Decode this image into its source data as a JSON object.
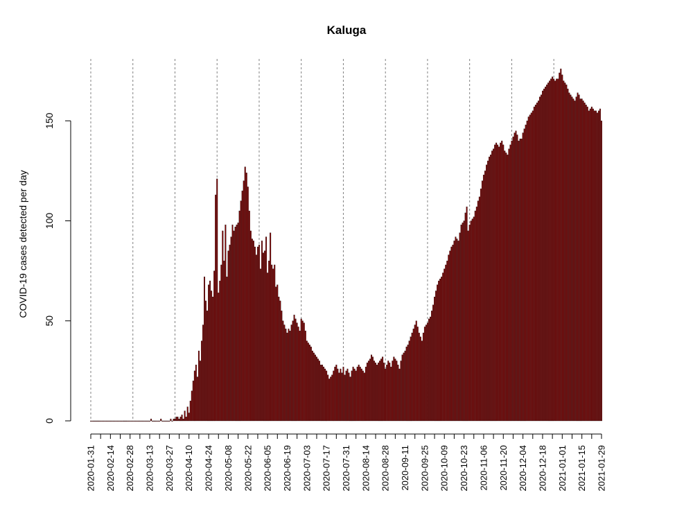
{
  "chart_data": {
    "type": "bar",
    "title": "Kaluga",
    "xlabel": "",
    "ylabel": "COVID-19 cases detected per day",
    "ylim": [
      0,
      176
    ],
    "yticks": [
      0,
      50,
      100,
      150
    ],
    "grid": "vertical dashed lines at monthly intervals",
    "bar_color": "#7f0000",
    "x_start": "2020-01-31",
    "x_end": "2021-01-29",
    "x_tick_labels": [
      "2020-01-31",
      "2020-02-14",
      "2020-02-28",
      "2020-03-13",
      "2020-03-27",
      "2020-04-10",
      "2020-04-24",
      "2020-05-08",
      "2020-05-22",
      "2020-06-05",
      "2020-06-19",
      "2020-07-03",
      "2020-07-17",
      "2020-07-31",
      "2020-08-14",
      "2020-08-28",
      "2020-09-11",
      "2020-09-25",
      "2020-10-09",
      "2020-10-23",
      "2020-11-06",
      "2020-11-20",
      "2020-12-04",
      "2020-12-18",
      "2021-01-01",
      "2021-01-15",
      "2021-01-29"
    ],
    "gridline_dates": [
      "2020-01-31",
      "2020-03-01",
      "2020-03-31",
      "2020-04-30",
      "2020-05-30",
      "2020-06-29",
      "2020-07-29",
      "2020-08-28",
      "2020-09-27",
      "2020-10-27",
      "2020-11-26",
      "2020-12-26"
    ],
    "anchors": [
      [
        "2020-01-31",
        0
      ],
      [
        "2020-03-13",
        0
      ],
      [
        "2020-03-14",
        1
      ],
      [
        "2020-03-15",
        0
      ],
      [
        "2020-03-20",
        0
      ],
      [
        "2020-03-21",
        1
      ],
      [
        "2020-03-22",
        0
      ],
      [
        "2020-03-27",
        0
      ],
      [
        "2020-03-28",
        1
      ],
      [
        "2020-03-29",
        0
      ],
      [
        "2020-04-01",
        2
      ],
      [
        "2020-04-03",
        1
      ],
      [
        "2020-04-05",
        3
      ],
      [
        "2020-04-06",
        1
      ],
      [
        "2020-04-07",
        5
      ],
      [
        "2020-04-08",
        2
      ],
      [
        "2020-04-09",
        7
      ],
      [
        "2020-04-10",
        4
      ],
      [
        "2020-04-11",
        10
      ],
      [
        "2020-04-12",
        15
      ],
      [
        "2020-04-13",
        20
      ],
      [
        "2020-04-14",
        25
      ],
      [
        "2020-04-15",
        28
      ],
      [
        "2020-04-16",
        22
      ],
      [
        "2020-04-17",
        35
      ],
      [
        "2020-04-18",
        30
      ],
      [
        "2020-04-19",
        40
      ],
      [
        "2020-04-20",
        48
      ],
      [
        "2020-04-21",
        72
      ],
      [
        "2020-04-22",
        60
      ],
      [
        "2020-04-23",
        55
      ],
      [
        "2020-04-24",
        68
      ],
      [
        "2020-04-25",
        70
      ],
      [
        "2020-04-26",
        65
      ],
      [
        "2020-04-27",
        62
      ],
      [
        "2020-04-28",
        75
      ],
      [
        "2020-04-29",
        113
      ],
      [
        "2020-04-30",
        121
      ],
      [
        "2020-05-01",
        64
      ],
      [
        "2020-05-02",
        70
      ],
      [
        "2020-05-03",
        78
      ],
      [
        "2020-05-04",
        95
      ],
      [
        "2020-05-05",
        80
      ],
      [
        "2020-05-06",
        98
      ],
      [
        "2020-05-07",
        72
      ],
      [
        "2020-05-08",
        85
      ],
      [
        "2020-05-09",
        88
      ],
      [
        "2020-05-10",
        92
      ],
      [
        "2020-05-11",
        98
      ],
      [
        "2020-05-12",
        95
      ],
      [
        "2020-05-13",
        97
      ],
      [
        "2020-05-14",
        98
      ],
      [
        "2020-05-15",
        99
      ],
      [
        "2020-05-16",
        105
      ],
      [
        "2020-05-17",
        110
      ],
      [
        "2020-05-18",
        115
      ],
      [
        "2020-05-19",
        120
      ],
      [
        "2020-05-20",
        127
      ],
      [
        "2020-05-21",
        124
      ],
      [
        "2020-05-22",
        117
      ],
      [
        "2020-05-23",
        105
      ],
      [
        "2020-05-24",
        95
      ],
      [
        "2020-05-25",
        91
      ],
      [
        "2020-05-26",
        90
      ],
      [
        "2020-05-27",
        87
      ],
      [
        "2020-05-28",
        83
      ],
      [
        "2020-05-29",
        87
      ],
      [
        "2020-05-30",
        88
      ],
      [
        "2020-05-31",
        76
      ],
      [
        "2020-06-01",
        90
      ],
      [
        "2020-06-02",
        84
      ],
      [
        "2020-06-03",
        85
      ],
      [
        "2020-06-04",
        92
      ],
      [
        "2020-06-05",
        74
      ],
      [
        "2020-06-06",
        80
      ],
      [
        "2020-06-07",
        94
      ],
      [
        "2020-06-08",
        78
      ],
      [
        "2020-06-09",
        76
      ],
      [
        "2020-06-10",
        78
      ],
      [
        "2020-06-11",
        67
      ],
      [
        "2020-06-12",
        68
      ],
      [
        "2020-06-13",
        62
      ],
      [
        "2020-06-14",
        60
      ],
      [
        "2020-06-15",
        55
      ],
      [
        "2020-06-16",
        50
      ],
      [
        "2020-06-17",
        48
      ],
      [
        "2020-06-18",
        46
      ],
      [
        "2020-06-19",
        44
      ],
      [
        "2020-06-20",
        46
      ],
      [
        "2020-06-21",
        45
      ],
      [
        "2020-06-22",
        48
      ],
      [
        "2020-06-23",
        50
      ],
      [
        "2020-06-24",
        53
      ],
      [
        "2020-06-25",
        51
      ],
      [
        "2020-06-26",
        49
      ],
      [
        "2020-06-27",
        47
      ],
      [
        "2020-06-28",
        45
      ],
      [
        "2020-06-29",
        51
      ],
      [
        "2020-06-30",
        50
      ],
      [
        "2020-07-01",
        49
      ],
      [
        "2020-07-02",
        45
      ],
      [
        "2020-07-03",
        40
      ],
      [
        "2020-07-05",
        38
      ],
      [
        "2020-07-07",
        35
      ],
      [
        "2020-07-09",
        33
      ],
      [
        "2020-07-11",
        31
      ],
      [
        "2020-07-13",
        28
      ],
      [
        "2020-07-15",
        27
      ],
      [
        "2020-07-17",
        25
      ],
      [
        "2020-07-18",
        23
      ],
      [
        "2020-07-19",
        21
      ],
      [
        "2020-07-20",
        22
      ],
      [
        "2020-07-21",
        23
      ],
      [
        "2020-07-22",
        25
      ],
      [
        "2020-07-23",
        27
      ],
      [
        "2020-07-24",
        28
      ],
      [
        "2020-07-25",
        26
      ],
      [
        "2020-07-26",
        24
      ],
      [
        "2020-07-27",
        26
      ],
      [
        "2020-07-28",
        24
      ],
      [
        "2020-07-29",
        27
      ],
      [
        "2020-07-30",
        23
      ],
      [
        "2020-07-31",
        25
      ],
      [
        "2020-08-01",
        26
      ],
      [
        "2020-08-03",
        22
      ],
      [
        "2020-08-05",
        27
      ],
      [
        "2020-08-07",
        25
      ],
      [
        "2020-08-09",
        28
      ],
      [
        "2020-08-11",
        26
      ],
      [
        "2020-08-13",
        24
      ],
      [
        "2020-08-15",
        29
      ],
      [
        "2020-08-17",
        31
      ],
      [
        "2020-08-18",
        33
      ],
      [
        "2020-08-20",
        30
      ],
      [
        "2020-08-22",
        28
      ],
      [
        "2020-08-24",
        30
      ],
      [
        "2020-08-26",
        32
      ],
      [
        "2020-08-28",
        26
      ],
      [
        "2020-08-30",
        30
      ],
      [
        "2020-09-01",
        27
      ],
      [
        "2020-09-03",
        32
      ],
      [
        "2020-09-05",
        30
      ],
      [
        "2020-09-07",
        26
      ],
      [
        "2020-09-09",
        33
      ],
      [
        "2020-09-11",
        35
      ],
      [
        "2020-09-13",
        38
      ],
      [
        "2020-09-15",
        42
      ],
      [
        "2020-09-17",
        46
      ],
      [
        "2020-09-19",
        50
      ],
      [
        "2020-09-21",
        44
      ],
      [
        "2020-09-23",
        40
      ],
      [
        "2020-09-25",
        47
      ],
      [
        "2020-09-27",
        49
      ],
      [
        "2020-09-29",
        52
      ],
      [
        "2020-10-01",
        58
      ],
      [
        "2020-10-03",
        65
      ],
      [
        "2020-10-05",
        70
      ],
      [
        "2020-10-07",
        72
      ],
      [
        "2020-10-09",
        76
      ],
      [
        "2020-10-11",
        80
      ],
      [
        "2020-10-13",
        85
      ],
      [
        "2020-10-15",
        88
      ],
      [
        "2020-10-17",
        92
      ],
      [
        "2020-10-19",
        90
      ],
      [
        "2020-10-21",
        98
      ],
      [
        "2020-10-23",
        100
      ],
      [
        "2020-10-25",
        107
      ],
      [
        "2020-10-26",
        95
      ],
      [
        "2020-10-28",
        100
      ],
      [
        "2020-10-30",
        102
      ],
      [
        "2020-11-01",
        107
      ],
      [
        "2020-11-03",
        112
      ],
      [
        "2020-11-05",
        120
      ],
      [
        "2020-11-07",
        125
      ],
      [
        "2020-11-09",
        130
      ],
      [
        "2020-11-11",
        133
      ],
      [
        "2020-11-13",
        136
      ],
      [
        "2020-11-15",
        139
      ],
      [
        "2020-11-17",
        137
      ],
      [
        "2020-11-19",
        140
      ],
      [
        "2020-11-21",
        135
      ],
      [
        "2020-11-23",
        133
      ],
      [
        "2020-11-25",
        138
      ],
      [
        "2020-11-27",
        142
      ],
      [
        "2020-11-29",
        145
      ],
      [
        "2020-12-01",
        140
      ],
      [
        "2020-12-03",
        141
      ],
      [
        "2020-12-05",
        146
      ],
      [
        "2020-12-07",
        150
      ],
      [
        "2020-12-09",
        153
      ],
      [
        "2020-12-11",
        155
      ],
      [
        "2020-12-13",
        158
      ],
      [
        "2020-12-15",
        160
      ],
      [
        "2020-12-17",
        163
      ],
      [
        "2020-12-19",
        166
      ],
      [
        "2020-12-21",
        168
      ],
      [
        "2020-12-23",
        170
      ],
      [
        "2020-12-25",
        172
      ],
      [
        "2020-12-27",
        170
      ],
      [
        "2020-12-29",
        171
      ],
      [
        "2020-12-31",
        176
      ],
      [
        "2021-01-02",
        170
      ],
      [
        "2021-01-04",
        168
      ],
      [
        "2021-01-06",
        164
      ],
      [
        "2021-01-08",
        162
      ],
      [
        "2021-01-10",
        160
      ],
      [
        "2021-01-12",
        164
      ],
      [
        "2021-01-14",
        161
      ],
      [
        "2021-01-16",
        160
      ],
      [
        "2021-01-18",
        158
      ],
      [
        "2021-01-20",
        155
      ],
      [
        "2021-01-22",
        157
      ],
      [
        "2021-01-24",
        155
      ],
      [
        "2021-01-26",
        154
      ],
      [
        "2021-01-28",
        156
      ],
      [
        "2021-01-29",
        150
      ]
    ]
  }
}
